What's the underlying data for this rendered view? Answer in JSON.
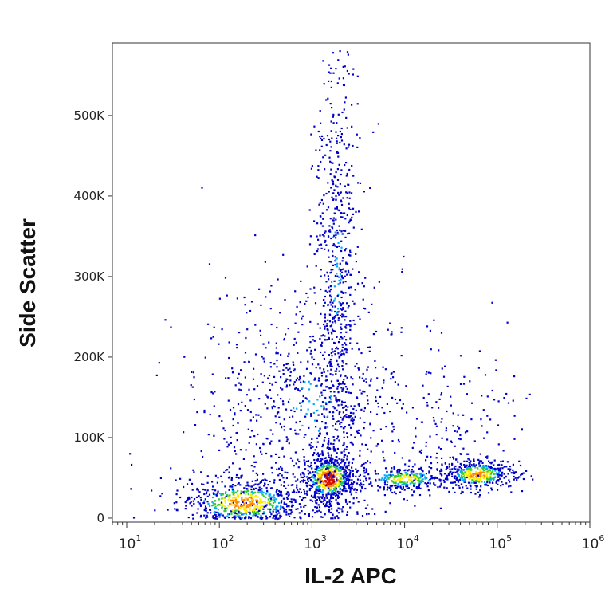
{
  "chart_data": {
    "type": "scatter",
    "title": "",
    "xlabel": "IL-2 APC",
    "ylabel": "Side Scatter",
    "x_scale": "log",
    "xlim": [
      7,
      1000000
    ],
    "ylim": [
      -5000,
      590000
    ],
    "grid": false,
    "x_ticks": [
      {
        "value": 10,
        "base": "10",
        "exp": "1"
      },
      {
        "value": 100,
        "base": "10",
        "exp": "2"
      },
      {
        "value": 1000,
        "base": "10",
        "exp": "3"
      },
      {
        "value": 10000,
        "base": "10",
        "exp": "4"
      },
      {
        "value": 100000,
        "base": "10",
        "exp": "5"
      },
      {
        "value": 1000000,
        "base": "10",
        "exp": "6"
      }
    ],
    "y_ticks": [
      {
        "value": 0,
        "label": "0"
      },
      {
        "value": 100000,
        "label": "100K"
      },
      {
        "value": 200000,
        "label": "200K"
      },
      {
        "value": 300000,
        "label": "300K"
      },
      {
        "value": 400000,
        "label": "400K"
      },
      {
        "value": 500000,
        "label": "500K"
      }
    ],
    "density_colors": [
      "#0000c8",
      "#00aaff",
      "#33cc33",
      "#ffee00",
      "#ff8800",
      "#dd1100"
    ],
    "populations": [
      {
        "x_center": 180,
        "y_center": 20000,
        "x_log_spread": 0.35,
        "y_spread": 15000,
        "count": 650,
        "peak": 0.75
      },
      {
        "x_center": 1500,
        "y_center": 50000,
        "x_log_spread": 0.13,
        "y_spread": 14000,
        "count": 600,
        "peak": 1.0
      },
      {
        "x_center": 10000,
        "y_center": 50000,
        "x_log_spread": 0.25,
        "y_spread": 8000,
        "count": 300,
        "peak": 0.6
      },
      {
        "x_center": 60000,
        "y_center": 55000,
        "x_log_spread": 0.2,
        "y_spread": 9000,
        "count": 420,
        "peak": 0.75
      },
      {
        "x_center": 1800,
        "y_center": 300000,
        "x_log_spread": 0.12,
        "y_spread": 150000,
        "count": 700,
        "peak": 0.3
      },
      {
        "x_center": 1000,
        "y_center": 140000,
        "x_log_spread": 0.5,
        "y_spread": 70000,
        "count": 650,
        "peak": 0.3
      },
      {
        "x_center": 300,
        "y_center": 100000,
        "x_log_spread": 0.6,
        "y_spread": 110000,
        "count": 220,
        "peak": 0.15
      },
      {
        "x_center": 30000,
        "y_center": 120000,
        "x_log_spread": 0.45,
        "y_spread": 50000,
        "count": 160,
        "peak": 0.15
      }
    ]
  }
}
